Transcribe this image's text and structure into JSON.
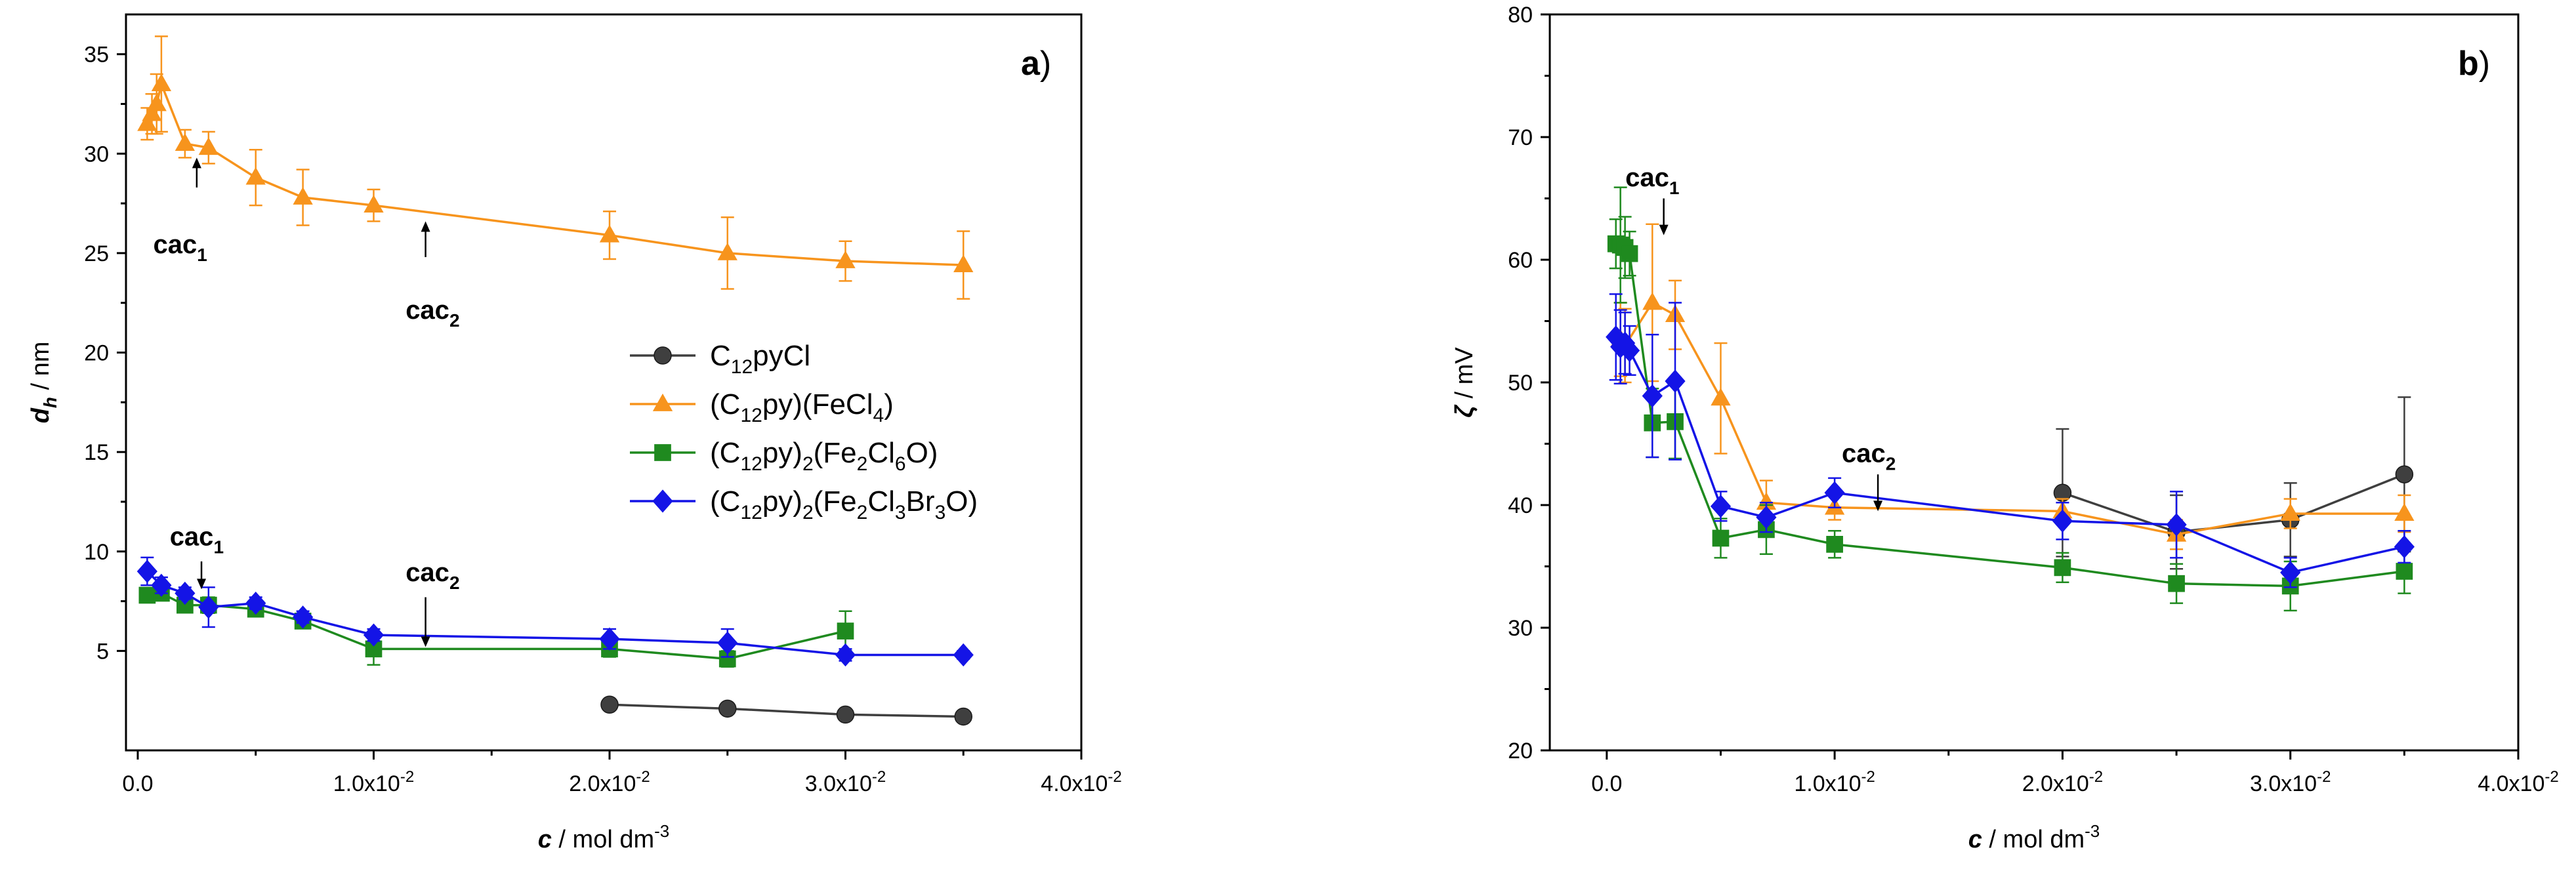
{
  "chart_data": [
    {
      "type": "line",
      "panel_label": "a",
      "xlabel": "c",
      "xlabel_unit": "mol dm",
      "xlabel_unit_sup": "-3",
      "ylabel": "d",
      "ylabel_sub": "h",
      "ylabel_unit": "nm",
      "xlim": [
        -0.0005,
        0.04
      ],
      "ylim": [
        0,
        37
      ],
      "xticks": [
        {
          "value": 0.0,
          "label": "0.0"
        },
        {
          "value": 0.01,
          "label": "1.0x10",
          "sup": "-2"
        },
        {
          "value": 0.02,
          "label": "2.0x10",
          "sup": "-2"
        },
        {
          "value": 0.03,
          "label": "3.0x10",
          "sup": "-2"
        },
        {
          "value": 0.04,
          "label": "4.0x10",
          "sup": "-2"
        }
      ],
      "yticks": [
        {
          "value": 5,
          "label": "5"
        },
        {
          "value": 10,
          "label": "10"
        },
        {
          "value": 15,
          "label": "15"
        },
        {
          "value": 20,
          "label": "20"
        },
        {
          "value": 25,
          "label": "25"
        },
        {
          "value": 30,
          "label": "30"
        },
        {
          "value": 35,
          "label": "35"
        }
      ],
      "legend": {
        "position": "center-right",
        "entries": [
          {
            "series": 0,
            "parts": [
              {
                "t": "C"
              },
              {
                "t": "12",
                "sub": true
              },
              {
                "t": "pyCl"
              }
            ]
          },
          {
            "series": 1,
            "parts": [
              {
                "t": "(C"
              },
              {
                "t": "12",
                "sub": true
              },
              {
                "t": "py)(FeCl"
              },
              {
                "t": "4",
                "sub": true
              },
              {
                "t": ")"
              }
            ]
          },
          {
            "series": 2,
            "parts": [
              {
                "t": "(C"
              },
              {
                "t": "12",
                "sub": true
              },
              {
                "t": "py)"
              },
              {
                "t": "2",
                "sub": true
              },
              {
                "t": "(Fe"
              },
              {
                "t": "2",
                "sub": true
              },
              {
                "t": "Cl"
              },
              {
                "t": "6",
                "sub": true
              },
              {
                "t": "O)"
              }
            ]
          },
          {
            "series": 3,
            "parts": [
              {
                "t": "(C"
              },
              {
                "t": "12",
                "sub": true
              },
              {
                "t": "py)"
              },
              {
                "t": "2",
                "sub": true
              },
              {
                "t": "(Fe"
              },
              {
                "t": "2",
                "sub": true
              },
              {
                "t": "Cl"
              },
              {
                "t": "3",
                "sub": true
              },
              {
                "t": "Br"
              },
              {
                "t": "3",
                "sub": true
              },
              {
                "t": "O)"
              }
            ]
          }
        ]
      },
      "series": [
        {
          "name": "C12pyCl",
          "color": "#3f3f3f",
          "marker": "circle",
          "x": [
            0.02,
            0.025,
            0.03,
            0.035
          ],
          "y": [
            2.3,
            2.1,
            1.8,
            1.7
          ],
          "err": [
            0.1,
            0.1,
            0.1,
            0.1
          ]
        },
        {
          "name": "(C12py)(FeCl4)",
          "color": "#f7941d",
          "marker": "triangle",
          "x": [
            0.0004,
            0.0006,
            0.0008,
            0.001,
            0.002,
            0.003,
            0.005,
            0.007,
            0.01,
            0.02,
            0.025,
            0.03,
            0.035
          ],
          "y": [
            31.5,
            32.0,
            32.5,
            33.5,
            30.5,
            30.3,
            28.8,
            27.8,
            27.4,
            25.9,
            25.0,
            24.6,
            24.4
          ],
          "err": [
            0.8,
            1.0,
            1.5,
            2.4,
            0.7,
            0.8,
            1.4,
            1.4,
            0.8,
            1.2,
            1.8,
            1.0,
            1.7
          ]
        },
        {
          "name": "(C12py)2(Fe2Cl6O)",
          "color": "#1f8a1f",
          "marker": "square",
          "x": [
            0.0004,
            0.001,
            0.002,
            0.003,
            0.005,
            0.007,
            0.01,
            0.02,
            0.025,
            0.03
          ],
          "y": [
            7.8,
            7.9,
            7.3,
            7.3,
            7.1,
            6.5,
            5.1,
            5.1,
            4.6,
            6.0
          ],
          "err": [
            0.3,
            0.3,
            0.3,
            0.4,
            0.3,
            0.3,
            0.8,
            0.4,
            0.4,
            1.0
          ]
        },
        {
          "name": "(C12py)2(Fe2Cl3Br3O)",
          "color": "#1414e6",
          "marker": "diamond",
          "x": [
            0.0004,
            0.001,
            0.002,
            0.003,
            0.005,
            0.007,
            0.01,
            0.02,
            0.025,
            0.03,
            0.035
          ],
          "y": [
            9.0,
            8.3,
            7.9,
            7.2,
            7.4,
            6.7,
            5.8,
            5.6,
            5.4,
            4.8,
            4.8
          ],
          "err": [
            0.7,
            0.4,
            0.3,
            1.0,
            0.3,
            0.3,
            0.3,
            0.5,
            0.7,
            0.3,
            0.2
          ]
        }
      ],
      "annotations": [
        {
          "text": "cac",
          "sub": "1",
          "arrow_x": 0.0025,
          "arrow_from": 28.3,
          "arrow_to": 29.8,
          "text_x": 0.0018,
          "text_y": 25.0
        },
        {
          "text": "cac",
          "sub": "2",
          "arrow_x": 0.0122,
          "arrow_from": 24.8,
          "arrow_to": 26.6,
          "text_x": 0.0125,
          "text_y": 21.7
        },
        {
          "text": "cac",
          "sub": "1",
          "arrow_x": 0.0027,
          "arrow_from": 9.5,
          "arrow_to": 8.1,
          "text_x": 0.0025,
          "text_y": 10.3
        },
        {
          "text": "cac",
          "sub": "2",
          "arrow_x": 0.0122,
          "arrow_from": 7.7,
          "arrow_to": 5.2,
          "text_x": 0.0125,
          "text_y": 8.5
        }
      ]
    },
    {
      "type": "line",
      "panel_label": "b",
      "xlabel": "c",
      "xlabel_unit": "mol dm",
      "xlabel_unit_sup": "-3",
      "ylabel": "ζ",
      "ylabel_unit": "mV",
      "xlim": [
        -0.0025,
        0.04
      ],
      "ylim": [
        20,
        80
      ],
      "xticks": [
        {
          "value": 0.0,
          "label": "0.0"
        },
        {
          "value": 0.01,
          "label": "1.0x10",
          "sup": "-2"
        },
        {
          "value": 0.02,
          "label": "2.0x10",
          "sup": "-2"
        },
        {
          "value": 0.03,
          "label": "3.0x10",
          "sup": "-2"
        },
        {
          "value": 0.04,
          "label": "4.0x10",
          "sup": "-2"
        }
      ],
      "yticks": [
        {
          "value": 20,
          "label": "20"
        },
        {
          "value": 30,
          "label": "30"
        },
        {
          "value": 40,
          "label": "40"
        },
        {
          "value": 50,
          "label": "50"
        },
        {
          "value": 60,
          "label": "60"
        },
        {
          "value": 70,
          "label": "70"
        },
        {
          "value": 80,
          "label": "80"
        }
      ],
      "series": [
        {
          "name": "C12pyCl",
          "color": "#3f3f3f",
          "marker": "circle",
          "x": [
            0.02,
            0.025,
            0.03,
            0.035
          ],
          "y": [
            41.0,
            37.8,
            38.8,
            42.5
          ],
          "err": [
            5.2,
            3.0,
            3.0,
            6.3
          ]
        },
        {
          "name": "(C12py)(FeCl4)",
          "color": "#f7941d",
          "marker": "triangle",
          "x": [
            0.0006,
            0.0008,
            0.002,
            0.003,
            0.005,
            0.007,
            0.01,
            0.02,
            0.025,
            0.03,
            0.035
          ],
          "y": [
            53.5,
            53.0,
            56.5,
            55.5,
            48.7,
            40.2,
            39.8,
            39.5,
            37.6,
            39.3,
            39.3
          ],
          "err": [
            3.0,
            3.0,
            6.4,
            2.8,
            4.5,
            1.8,
            1.0,
            1.0,
            1.2,
            1.2,
            1.5
          ]
        },
        {
          "name": "(C12py)2(Fe2Cl6O)",
          "color": "#1f8a1f",
          "marker": "square",
          "x": [
            0.0004,
            0.0006,
            0.0008,
            0.001,
            0.002,
            0.003,
            0.005,
            0.007,
            0.01,
            0.02,
            0.025,
            0.03,
            0.035
          ],
          "y": [
            61.3,
            61.2,
            61.0,
            60.5,
            46.7,
            46.8,
            37.3,
            38.0,
            36.8,
            34.9,
            33.6,
            33.4,
            34.6
          ],
          "err": [
            2.0,
            4.7,
            2.5,
            1.8,
            2.8,
            3.0,
            1.6,
            2.0,
            1.1,
            1.2,
            1.6,
            2.0,
            1.8
          ]
        },
        {
          "name": "(C12py)2(Fe2Cl3Br3O)",
          "color": "#1414e6",
          "marker": "diamond",
          "x": [
            0.0004,
            0.0006,
            0.0008,
            0.001,
            0.002,
            0.003,
            0.005,
            0.007,
            0.01,
            0.02,
            0.025,
            0.03,
            0.035
          ],
          "y": [
            53.7,
            52.9,
            53.2,
            52.6,
            48.9,
            50.1,
            39.9,
            39.0,
            41.0,
            38.7,
            38.4,
            34.5,
            36.6
          ],
          "err": [
            3.5,
            3.0,
            2.5,
            2.0,
            5.0,
            6.4,
            1.2,
            1.2,
            1.2,
            1.5,
            2.7,
            1.2,
            1.3
          ]
        }
      ],
      "annotations": [
        {
          "text": "cac",
          "sub": "1",
          "arrow_x": 0.0025,
          "arrow_from": 65.0,
          "arrow_to": 62.0,
          "text_x": 0.002,
          "text_y": 66.0
        },
        {
          "text": "cac",
          "sub": "2",
          "arrow_x": 0.0119,
          "arrow_from": 42.5,
          "arrow_to": 39.5,
          "text_x": 0.0115,
          "text_y": 43.5
        }
      ]
    }
  ]
}
